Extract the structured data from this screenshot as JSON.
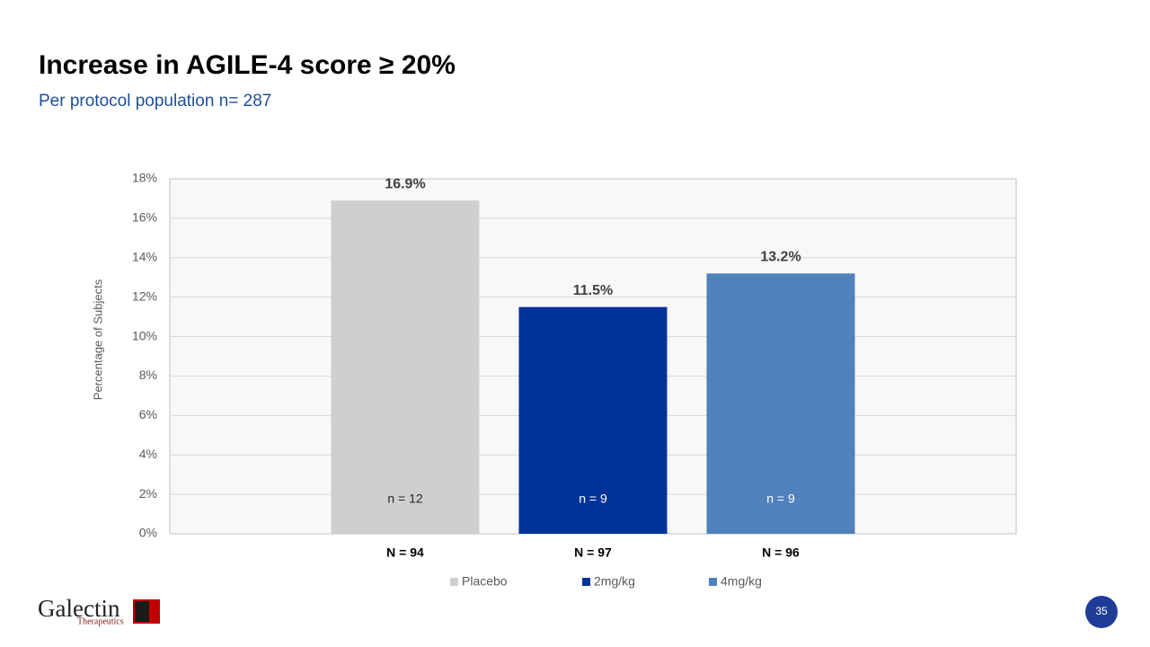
{
  "chart_data": {
    "type": "bar",
    "title": "Increase in AGILE-4 score ≥ 20%",
    "subtitle": "Per protocol population n= 287",
    "y_label": "Percentage of Subjects",
    "categories": [
      "N = 94",
      "N = 97",
      "N = 96"
    ],
    "values": [
      16.9,
      11.5,
      13.2
    ],
    "value_labels": [
      "16.9%",
      "11.5%",
      "13.2%"
    ],
    "annotations": [
      "n = 12",
      "n = 9",
      "n = 9"
    ],
    "colors": [
      "#d0cece",
      "#003399",
      "#4f81bd"
    ],
    "legend": [
      "Placebo",
      "2mg/kg",
      "4mg/kg"
    ],
    "ylim": [
      0,
      18
    ],
    "yticks": [
      {
        "value": 0,
        "label": "0%"
      },
      {
        "value": 2,
        "label": "2%"
      },
      {
        "value": 4,
        "label": "4%"
      },
      {
        "value": 6,
        "label": "6%"
      },
      {
        "value": 8,
        "label": "8%"
      },
      {
        "value": 10,
        "label": "10%"
      },
      {
        "value": 12,
        "label": "12%"
      },
      {
        "value": 14,
        "label": "14%"
      },
      {
        "value": 16,
        "label": "16%"
      },
      {
        "value": 18,
        "label": "18%"
      }
    ],
    "grid": true
  },
  "logo": {
    "name": "Galectin",
    "tagline": "Therapeutics"
  },
  "page_number": "35"
}
